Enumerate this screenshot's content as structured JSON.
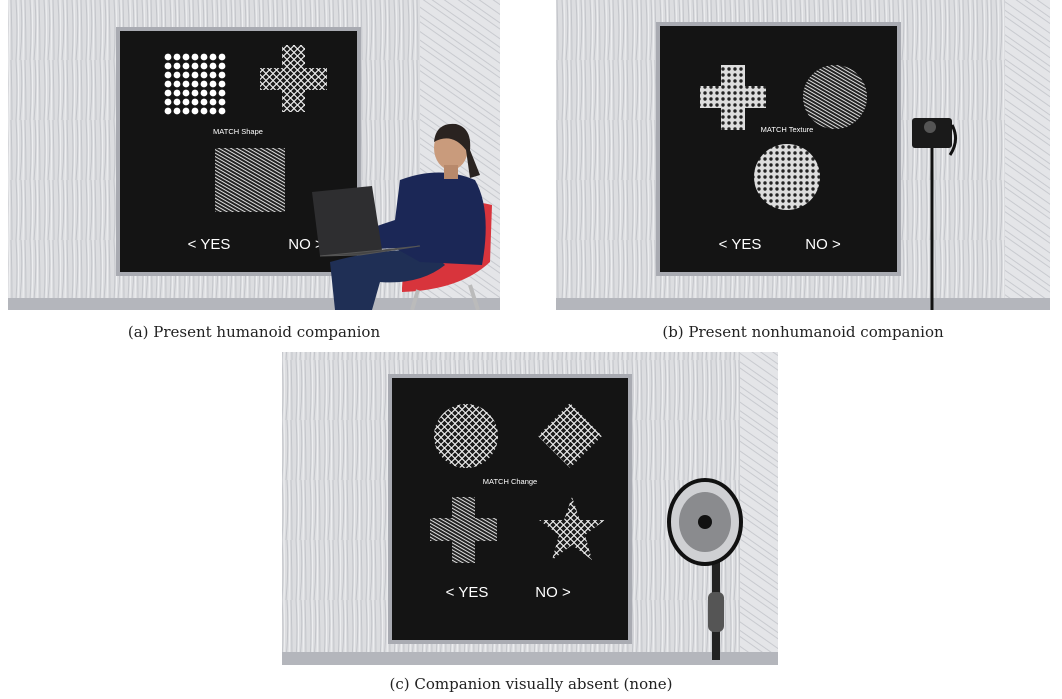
{
  "panels": [
    {
      "caption": "(a) Present humanoid companion",
      "screen": {
        "instruction": "MATCH Shape",
        "yes": "< YES",
        "no": "NO >"
      }
    },
    {
      "caption": "(b) Present nonhumanoid companion",
      "screen": {
        "instruction": "MATCH Texture",
        "yes": "< YES",
        "no": "NO >"
      }
    },
    {
      "caption": "(c) Companion visually absent (none)",
      "screen": {
        "instruction": "MATCH Change",
        "yes": "< YES",
        "no": "NO >"
      }
    }
  ]
}
